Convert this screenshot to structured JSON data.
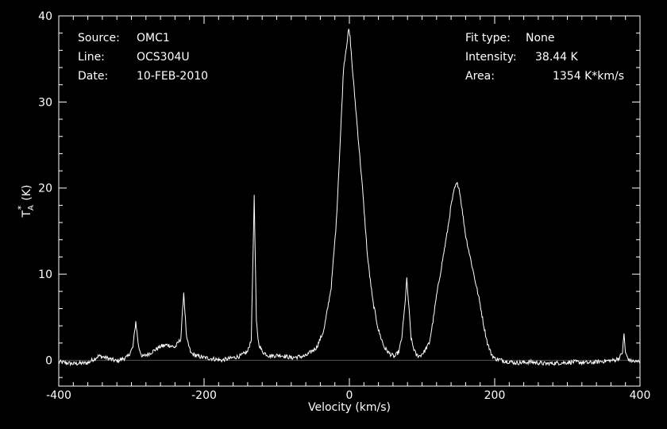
{
  "info": {
    "source_label": "Source:",
    "source_value": "OMC1",
    "line_label": "Line:",
    "line_value": "OCS304U",
    "date_label": "Date:",
    "date_value": "10-FEB-2010",
    "fit_label": "Fit type:",
    "fit_value": "None",
    "intensity_label": "Intensity:",
    "intensity_value": "38.44 K",
    "area_label": "Area:",
    "area_value": "1354 K*km/s"
  },
  "colors": {
    "background": "#000000",
    "spectrum": "#ffffff",
    "baseline": "#ff0000",
    "axes": "#ffffff"
  },
  "chart_data": {
    "type": "line",
    "xlabel": "Velocity (km/s)",
    "ylabel_main": "T",
    "ylabel_sub": "A",
    "ylabel_sup": "*",
    "ylabel_unit": "(K)",
    "xlim": [
      -400,
      400
    ],
    "ylim": [
      -3,
      40
    ],
    "xticks": [
      -400,
      -200,
      0,
      200,
      400
    ],
    "xtick_labels": [
      "-400",
      "-200",
      "0",
      "200",
      "400"
    ],
    "yticks": [
      0,
      10,
      20,
      30,
      40
    ],
    "ytick_labels": [
      "0",
      "10",
      "20",
      "30",
      "40"
    ],
    "baseline": 0,
    "series": [
      {
        "x": [
          -400,
          -380,
          -360,
          -345,
          -335,
          -320,
          -305,
          -298,
          -294,
          -290,
          -285,
          -275,
          -260,
          -250,
          -240,
          -232,
          -228,
          -224,
          -218,
          -210,
          -200,
          -190,
          -175,
          -160,
          -150,
          -140,
          -135,
          -131,
          -128,
          -125,
          -120,
          -110,
          -95,
          -80,
          -60,
          -45,
          -35,
          -25,
          -18,
          -12,
          -8,
          -4,
          -1,
          1,
          4,
          8,
          12,
          18,
          25,
          32,
          40,
          48,
          55,
          62,
          68,
          72,
          76,
          79,
          82,
          85,
          88,
          92,
          97,
          103,
          110,
          115,
          120,
          125,
          130,
          135,
          140,
          145,
          148,
          150,
          152,
          156,
          160,
          165,
          170,
          175,
          180,
          185,
          190,
          195,
          200,
          215,
          230,
          250,
          270,
          290,
          310,
          330,
          350,
          365,
          372,
          376,
          378,
          380,
          385,
          395,
          400
        ],
        "y": [
          -0.2,
          -0.4,
          -0.3,
          0.5,
          0.3,
          -0.1,
          0.4,
          1.5,
          4.5,
          1.5,
          0.4,
          0.8,
          1.6,
          1.8,
          1.5,
          2.5,
          7.9,
          2.5,
          0.8,
          0.5,
          0.3,
          0.2,
          0.0,
          0.3,
          0.5,
          1.0,
          2.5,
          19.0,
          4.5,
          2.0,
          1.0,
          0.5,
          0.6,
          0.3,
          0.5,
          1.5,
          3.5,
          8.5,
          16.0,
          26.5,
          34.0,
          36.5,
          38.4,
          37.5,
          34.0,
          30.0,
          26.0,
          20.0,
          12.0,
          7.0,
          3.5,
          1.5,
          0.8,
          0.4,
          1.0,
          2.5,
          6.0,
          9.4,
          6.0,
          2.5,
          1.5,
          0.6,
          0.5,
          1.0,
          2.0,
          4.5,
          7.5,
          10.0,
          12.5,
          15.0,
          18.0,
          20.0,
          20.5,
          20.3,
          19.5,
          17.0,
          14.5,
          12.5,
          10.5,
          8.5,
          6.5,
          4.0,
          2.0,
          0.8,
          0.2,
          -0.1,
          -0.3,
          -0.2,
          -0.4,
          -0.3,
          -0.2,
          -0.3,
          -0.1,
          0.0,
          0.3,
          1.0,
          3.1,
          0.8,
          0.0,
          -0.2,
          -0.1
        ]
      }
    ]
  }
}
